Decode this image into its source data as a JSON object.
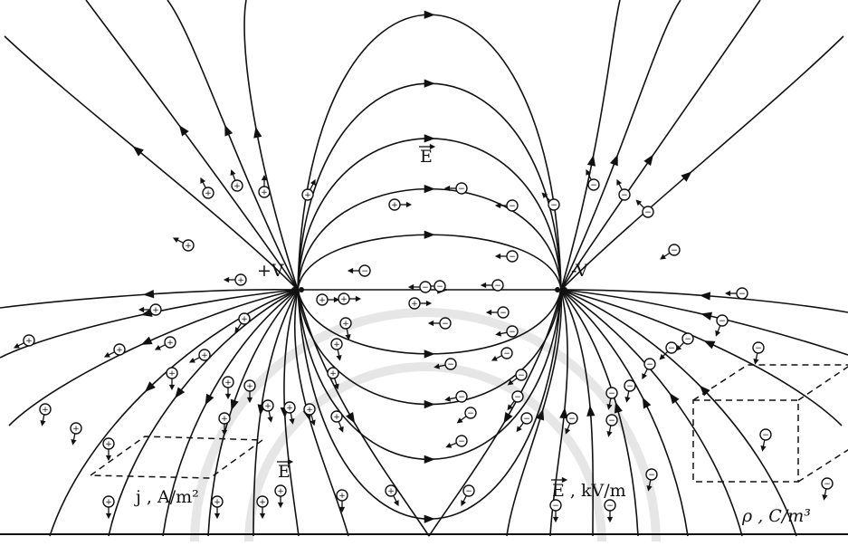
{
  "diagram": {
    "labels": {
      "positive_conductor": "+V",
      "negative_conductor": "-V",
      "field_top": "E",
      "field_bottom_left": "E",
      "current_density": "j , A/m²",
      "field_strength": "E , kV/m",
      "charge_density": "ρ , C/m³"
    },
    "ion_signs": {
      "positive": "+",
      "negative": "−"
    },
    "colors": {
      "ink": "#111111",
      "background": "#ffffff",
      "watermark": "#e6e6e6"
    }
  }
}
